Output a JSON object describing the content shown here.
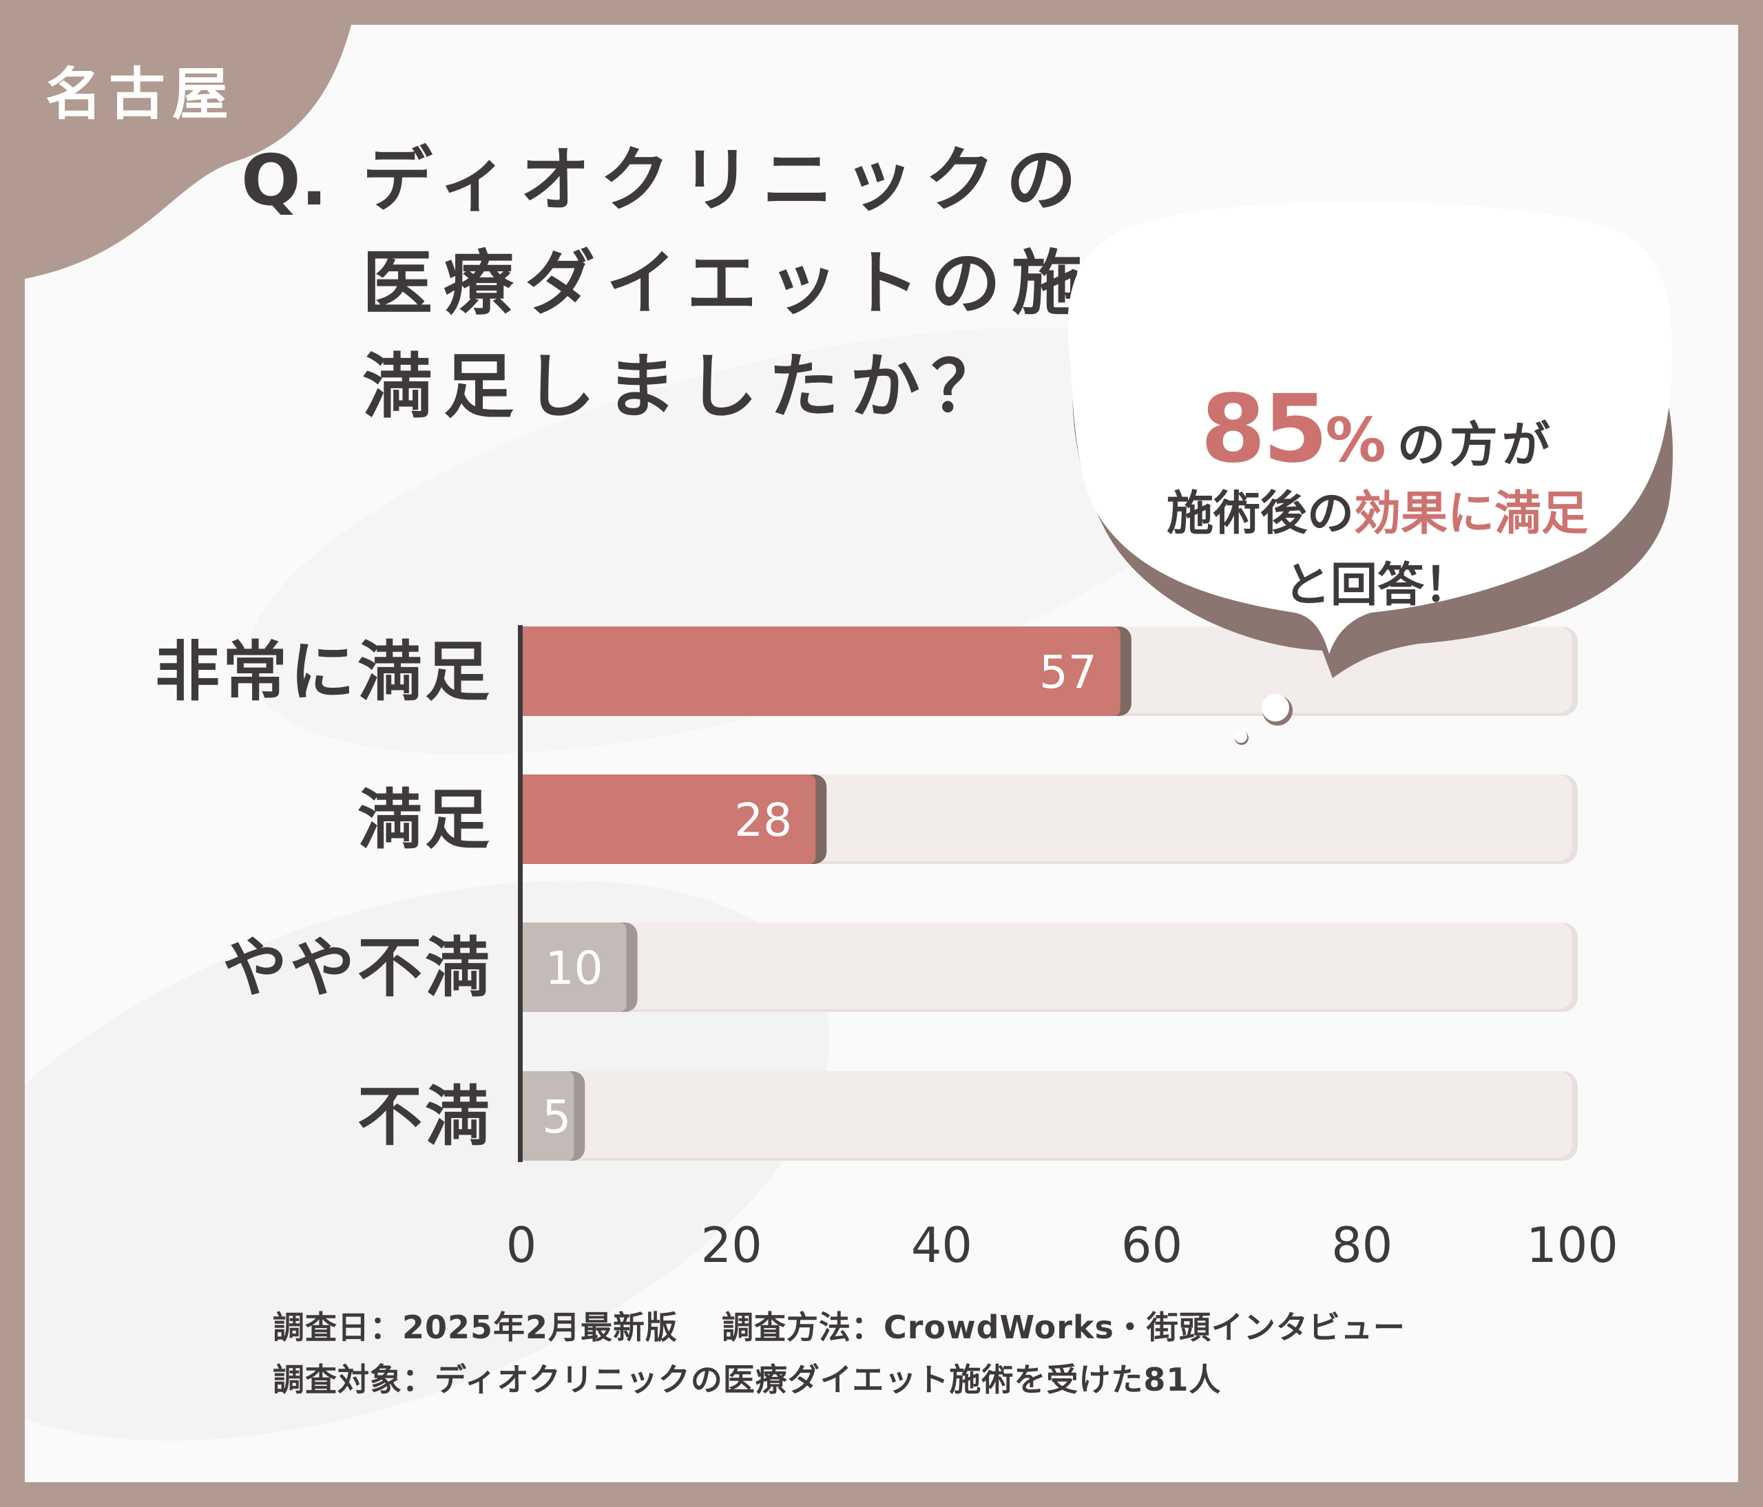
{
  "region_label": "名古屋",
  "question": {
    "mark": "Q.",
    "lines": [
      "ディオクリニックの",
      "医療ダイエットの施術後の効果に",
      "満足しましたか？"
    ]
  },
  "callout": {
    "percent": "85",
    "percent_unit": "%",
    "line1_rest": "の方が",
    "line2_dark": "施術後の",
    "line2_accent": "効果に満足",
    "line3": "と回答！"
  },
  "chart_data": {
    "type": "bar",
    "orientation": "horizontal",
    "categories": [
      "非常に満足",
      "満足",
      "やや不満",
      "不満"
    ],
    "values": [
      57,
      28,
      10,
      5
    ],
    "data_labels": [
      "57",
      "28",
      "10",
      "5"
    ],
    "xlim": [
      0,
      100
    ],
    "x_ticks": [
      "0",
      "20",
      "40",
      "60",
      "80",
      "100"
    ],
    "grid": false,
    "colors": {
      "positive": "#cc7873",
      "negative": "#c4bbb8",
      "track": "#f2ecea"
    }
  },
  "footer": {
    "line1": "調査日：2025年2月最新版　 調査方法：CrowdWorks・街頭インタビュー",
    "line2": "調査対象：ディオクリニックの医療ダイエット施術を受けた81人"
  }
}
